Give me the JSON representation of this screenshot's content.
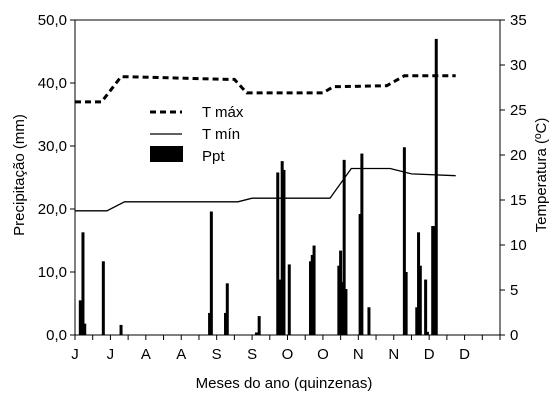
{
  "chart_data": {
    "type": "bar+line",
    "title": "",
    "xlabel": "Meses do ano (quinzenas)",
    "ylabel_left": "Precipitação (mm)",
    "ylabel_right": "Temperatura (ºC)",
    "ylim_left": [
      0,
      50
    ],
    "ylim_right": [
      0,
      35
    ],
    "yticks_left": [
      "0,0",
      "10,0",
      "20,0",
      "30,0",
      "40,0",
      "50,0"
    ],
    "yticks_right": [
      "0",
      "5",
      "10",
      "15",
      "20",
      "25",
      "30",
      "35"
    ],
    "x_range": [
      0,
      24
    ],
    "categories": [
      "J",
      "J",
      "A",
      "A",
      "S",
      "S",
      "O",
      "O",
      "N",
      "N",
      "D",
      "D"
    ],
    "grid": false,
    "legend": {
      "placement": "left-center",
      "items": [
        {
          "label": "T máx",
          "style": "dashed"
        },
        {
          "label": "T mín",
          "style": "solid"
        },
        {
          "label": "Ppt",
          "style": "bar"
        }
      ]
    },
    "colors": {
      "series": "#000000",
      "background": "#ffffff"
    },
    "series": [
      {
        "name": "T máx",
        "axis": "right",
        "line": "dashed",
        "points": [
          [
            0,
            25.9
          ],
          [
            1.5,
            25.9
          ],
          [
            2.6,
            28.7
          ],
          [
            3.0,
            28.7
          ],
          [
            8.6,
            28.4
          ],
          [
            9.0,
            28.4
          ],
          [
            9.7,
            26.9
          ],
          [
            10.2,
            26.9
          ],
          [
            14.0,
            26.9
          ],
          [
            14.6,
            27.6
          ],
          [
            15.0,
            27.6
          ],
          [
            17.6,
            27.7
          ],
          [
            18.6,
            28.8
          ],
          [
            19.0,
            28.8
          ],
          [
            21.5,
            28.8
          ]
        ]
      },
      {
        "name": "T mín",
        "axis": "right",
        "line": "solid",
        "points": [
          [
            0,
            13.8
          ],
          [
            1.8,
            13.8
          ],
          [
            2.8,
            14.8
          ],
          [
            9.2,
            14.8
          ],
          [
            10.0,
            15.2
          ],
          [
            14.4,
            15.2
          ],
          [
            15.6,
            18.5
          ],
          [
            17.8,
            18.5
          ],
          [
            19.0,
            17.9
          ],
          [
            21.5,
            17.7
          ]
        ]
      },
      {
        "name": "Ppt",
        "axis": "left",
        "type": "bar",
        "points": [
          [
            0.3,
            5.5
          ],
          [
            0.45,
            16.3
          ],
          [
            0.55,
            1.8
          ],
          [
            1.6,
            11.7
          ],
          [
            2.6,
            1.6
          ],
          [
            7.6,
            3.5
          ],
          [
            7.7,
            19.6
          ],
          [
            8.5,
            3.5
          ],
          [
            8.6,
            8.2
          ],
          [
            10.25,
            0.4
          ],
          [
            10.4,
            3.0
          ],
          [
            11.45,
            25.8
          ],
          [
            11.6,
            8.8
          ],
          [
            11.7,
            27.6
          ],
          [
            11.8,
            26.2
          ],
          [
            12.1,
            11.2
          ],
          [
            13.3,
            11.7
          ],
          [
            13.4,
            12.7
          ],
          [
            13.5,
            14.2
          ],
          [
            14.9,
            11.0
          ],
          [
            15.0,
            13.4
          ],
          [
            15.1,
            8.4
          ],
          [
            15.2,
            27.8
          ],
          [
            15.3,
            7.3
          ],
          [
            16.1,
            19.2
          ],
          [
            16.2,
            28.8
          ],
          [
            16.6,
            4.4
          ],
          [
            18.6,
            29.8
          ],
          [
            18.7,
            10.0
          ],
          [
            19.3,
            4.4
          ],
          [
            19.4,
            16.3
          ],
          [
            19.5,
            11.0
          ],
          [
            19.8,
            8.8
          ],
          [
            19.9,
            0.5
          ],
          [
            20.2,
            17.3
          ],
          [
            20.3,
            17.3
          ],
          [
            20.4,
            47.0
          ]
        ]
      }
    ]
  }
}
